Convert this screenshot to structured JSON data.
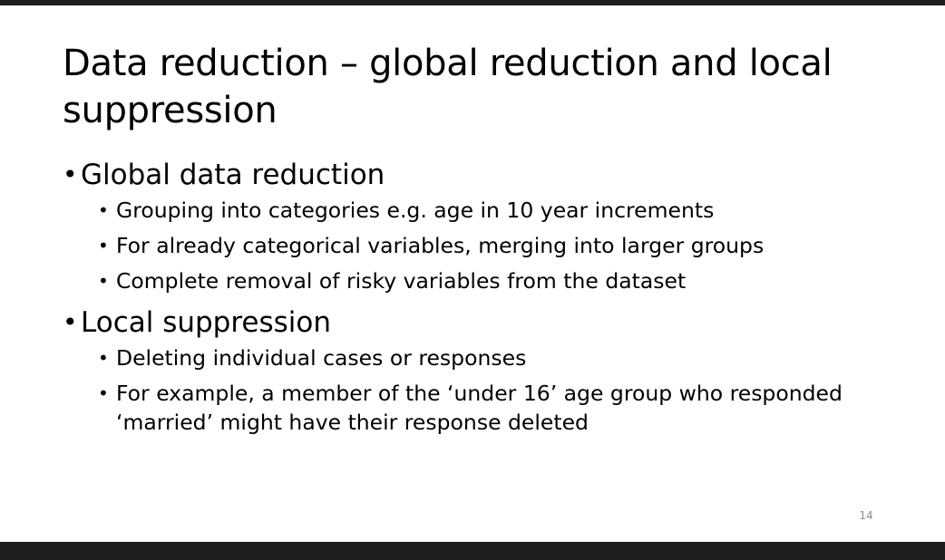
{
  "slide": {
    "title": "Data reduction – global reduction and local suppression",
    "page_number": "14",
    "sections": [
      {
        "heading": "Global data reduction",
        "items": [
          "Grouping into categories e.g. age in 10 year increments",
          "For already categorical variables, merging into larger groups",
          "Complete removal of risky variables from the dataset"
        ]
      },
      {
        "heading": "Local suppression",
        "items": [
          "Deleting individual cases or responses",
          "For example, a member of the ‘under 16’ age group who responded ‘married’ might have their response deleted"
        ]
      }
    ]
  }
}
